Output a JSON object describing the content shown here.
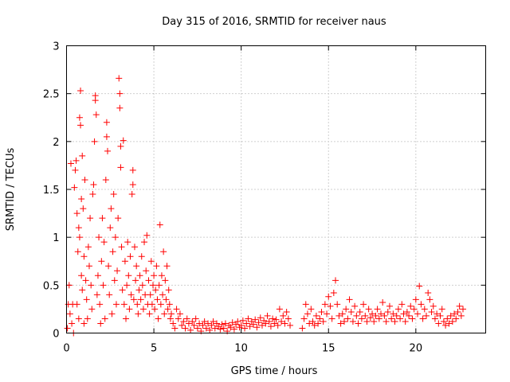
{
  "chart_data": {
    "type": "scatter",
    "title": "Day 315 of 2016, SRMTID for receiver naus",
    "xlabel": "GPS time / hours",
    "ylabel": "SRMTID / TECUs",
    "xlim": [
      0,
      24
    ],
    "ylim": [
      0,
      3
    ],
    "x_ticks": [
      0,
      5,
      10,
      15,
      20
    ],
    "x_tick_labels": [
      "0",
      "5",
      "10",
      "15",
      "20"
    ],
    "y_ticks": [
      0,
      0.5,
      1,
      1.5,
      2,
      2.5,
      3
    ],
    "y_tick_labels": [
      "0",
      "0.5",
      "1",
      "1.5",
      "2",
      "2.5",
      "3"
    ],
    "grid": true,
    "marker": "+",
    "color": "#ff0000",
    "series": [
      {
        "name": "SRMTID",
        "points": [
          [
            0.05,
            0.05
          ],
          [
            0.1,
            0.3
          ],
          [
            0.15,
            0.5
          ],
          [
            0.2,
            0.2
          ],
          [
            0.25,
            1.77
          ],
          [
            0.3,
            0.1
          ],
          [
            0.35,
            0.3
          ],
          [
            0.4,
            0.0
          ],
          [
            0.45,
            1.52
          ],
          [
            0.5,
            1.7
          ],
          [
            0.55,
            1.8
          ],
          [
            0.6,
            1.25
          ],
          [
            0.6,
            0.3
          ],
          [
            0.65,
            0.85
          ],
          [
            0.7,
            1.1
          ],
          [
            0.7,
            0.15
          ],
          [
            0.75,
            2.25
          ],
          [
            0.75,
            1.0
          ],
          [
            0.8,
            2.53
          ],
          [
            0.8,
            2.17
          ],
          [
            0.85,
            1.4
          ],
          [
            0.85,
            0.6
          ],
          [
            0.9,
            1.85
          ],
          [
            0.9,
            0.45
          ],
          [
            0.95,
            1.3
          ],
          [
            1.0,
            0.8
          ],
          [
            1.0,
            0.1
          ],
          [
            1.05,
            1.6
          ],
          [
            1.1,
            0.55
          ],
          [
            1.15,
            0.35
          ],
          [
            1.2,
            0.15
          ],
          [
            1.25,
            0.9
          ],
          [
            1.3,
            0.7
          ],
          [
            1.35,
            1.2
          ],
          [
            1.4,
            0.5
          ],
          [
            1.45,
            0.25
          ],
          [
            1.5,
            1.45
          ],
          [
            1.55,
            1.55
          ],
          [
            1.6,
            2.0
          ],
          [
            1.65,
            2.48
          ],
          [
            1.65,
            2.43
          ],
          [
            1.7,
            2.28
          ],
          [
            1.75,
            0.4
          ],
          [
            1.8,
            0.6
          ],
          [
            1.85,
            1.0
          ],
          [
            1.9,
            0.3
          ],
          [
            1.95,
            0.1
          ],
          [
            2.0,
            0.75
          ],
          [
            2.05,
            1.2
          ],
          [
            2.1,
            0.5
          ],
          [
            2.15,
            0.95
          ],
          [
            2.2,
            0.15
          ],
          [
            2.25,
            1.6
          ],
          [
            2.3,
            2.2
          ],
          [
            2.3,
            2.05
          ],
          [
            2.35,
            1.9
          ],
          [
            2.4,
            0.7
          ],
          [
            2.45,
            0.4
          ],
          [
            2.5,
            1.1
          ],
          [
            2.55,
            1.3
          ],
          [
            2.6,
            0.2
          ],
          [
            2.65,
            0.85
          ],
          [
            2.7,
            1.45
          ],
          [
            2.75,
            0.55
          ],
          [
            2.8,
            1.0
          ],
          [
            2.85,
            0.3
          ],
          [
            2.9,
            0.65
          ],
          [
            2.95,
            1.2
          ],
          [
            3.0,
            2.66
          ],
          [
            3.05,
            2.5
          ],
          [
            3.05,
            2.35
          ],
          [
            3.1,
            1.73
          ],
          [
            3.1,
            1.95
          ],
          [
            3.15,
            0.9
          ],
          [
            3.2,
            0.45
          ],
          [
            3.25,
            2.01
          ],
          [
            3.3,
            0.3
          ],
          [
            3.35,
            0.75
          ],
          [
            3.4,
            0.15
          ],
          [
            3.45,
            0.5
          ],
          [
            3.5,
            0.95
          ],
          [
            3.55,
            0.6
          ],
          [
            3.6,
            0.25
          ],
          [
            3.65,
            0.8
          ],
          [
            3.7,
            0.4
          ],
          [
            3.75,
            1.45
          ],
          [
            3.8,
            1.7
          ],
          [
            3.8,
            1.55
          ],
          [
            3.85,
            0.35
          ],
          [
            3.9,
            0.9
          ],
          [
            3.95,
            0.55
          ],
          [
            4.0,
            0.7
          ],
          [
            4.05,
            0.3
          ],
          [
            4.1,
            0.2
          ],
          [
            4.15,
            0.45
          ],
          [
            4.2,
            0.6
          ],
          [
            4.25,
            0.35
          ],
          [
            4.3,
            0.8
          ],
          [
            4.35,
            0.5
          ],
          [
            4.4,
            0.25
          ],
          [
            4.45,
            0.95
          ],
          [
            4.5,
            0.4
          ],
          [
            4.55,
            0.65
          ],
          [
            4.6,
            1.02
          ],
          [
            4.65,
            0.3
          ],
          [
            4.7,
            0.55
          ],
          [
            4.75,
            0.2
          ],
          [
            4.8,
            0.4
          ],
          [
            4.85,
            0.75
          ],
          [
            4.9,
            0.3
          ],
          [
            4.95,
            0.5
          ],
          [
            5.0,
            0.6
          ],
          [
            5.05,
            0.25
          ],
          [
            5.1,
            0.45
          ],
          [
            5.15,
            0.7
          ],
          [
            5.2,
            0.35
          ],
          [
            5.25,
            0.15
          ],
          [
            5.3,
            0.5
          ],
          [
            5.35,
            1.13
          ],
          [
            5.4,
            0.3
          ],
          [
            5.45,
            0.6
          ],
          [
            5.5,
            0.4
          ],
          [
            5.55,
            0.85
          ],
          [
            5.6,
            0.2
          ],
          [
            5.65,
            0.55
          ],
          [
            5.7,
            0.35
          ],
          [
            5.75,
            0.7
          ],
          [
            5.8,
            0.25
          ],
          [
            5.85,
            0.45
          ],
          [
            5.9,
            0.3
          ],
          [
            5.95,
            0.15
          ],
          [
            6.0,
            0.2
          ],
          [
            6.1,
            0.1
          ],
          [
            6.2,
            0.05
          ],
          [
            6.3,
            0.25
          ],
          [
            6.4,
            0.15
          ],
          [
            6.5,
            0.2
          ],
          [
            6.6,
            0.08
          ],
          [
            6.7,
            0.12
          ],
          [
            6.8,
            0.05
          ],
          [
            6.9,
            0.15
          ],
          [
            7.0,
            0.1
          ],
          [
            7.1,
            0.03
          ],
          [
            7.2,
            0.12
          ],
          [
            7.3,
            0.08
          ],
          [
            7.4,
            0.15
          ],
          [
            7.5,
            0.05
          ],
          [
            7.6,
            0.1
          ],
          [
            7.7,
            0.02
          ],
          [
            7.8,
            0.08
          ],
          [
            7.9,
            0.12
          ],
          [
            8.0,
            0.05
          ],
          [
            8.1,
            0.1
          ],
          [
            8.2,
            0.03
          ],
          [
            8.3,
            0.08
          ],
          [
            8.4,
            0.12
          ],
          [
            8.5,
            0.05
          ],
          [
            8.6,
            0.1
          ],
          [
            8.7,
            0.07
          ],
          [
            8.8,
            0.04
          ],
          [
            8.9,
            0.09
          ],
          [
            9.0,
            0.05
          ],
          [
            9.1,
            0.1
          ],
          [
            9.2,
            0.02
          ],
          [
            9.3,
            0.08
          ],
          [
            9.4,
            0.06
          ],
          [
            9.5,
            0.11
          ],
          [
            9.6,
            0.04
          ],
          [
            9.7,
            0.09
          ],
          [
            9.8,
            0.12
          ],
          [
            9.9,
            0.06
          ],
          [
            10.0,
            0.08
          ],
          [
            10.1,
            0.13
          ],
          [
            10.2,
            0.05
          ],
          [
            10.3,
            0.1
          ],
          [
            10.4,
            0.15
          ],
          [
            10.5,
            0.07
          ],
          [
            10.6,
            0.12
          ],
          [
            10.7,
            0.09
          ],
          [
            10.8,
            0.14
          ],
          [
            10.9,
            0.06
          ],
          [
            11.0,
            0.11
          ],
          [
            11.1,
            0.16
          ],
          [
            11.2,
            0.08
          ],
          [
            11.3,
            0.13
          ],
          [
            11.4,
            0.1
          ],
          [
            11.5,
            0.18
          ],
          [
            11.6,
            0.12
          ],
          [
            11.7,
            0.07
          ],
          [
            11.8,
            0.15
          ],
          [
            11.9,
            0.1
          ],
          [
            12.0,
            0.14
          ],
          [
            12.1,
            0.08
          ],
          [
            12.2,
            0.25
          ],
          [
            12.3,
            0.12
          ],
          [
            12.4,
            0.18
          ],
          [
            12.5,
            0.1
          ],
          [
            12.6,
            0.22
          ],
          [
            12.7,
            0.15
          ],
          [
            12.8,
            0.08
          ],
          [
            13.5,
            0.05
          ],
          [
            13.6,
            0.15
          ],
          [
            13.7,
            0.3
          ],
          [
            13.8,
            0.2
          ],
          [
            13.9,
            0.1
          ],
          [
            14.0,
            0.25
          ],
          [
            14.1,
            0.12
          ],
          [
            14.2,
            0.08
          ],
          [
            14.3,
            0.18
          ],
          [
            14.4,
            0.1
          ],
          [
            14.5,
            0.15
          ],
          [
            14.6,
            0.22
          ],
          [
            14.7,
            0.12
          ],
          [
            14.8,
            0.3
          ],
          [
            14.9,
            0.2
          ],
          [
            15.0,
            0.38
          ],
          [
            15.1,
            0.28
          ],
          [
            15.2,
            0.15
          ],
          [
            15.3,
            0.42
          ],
          [
            15.4,
            0.55
          ],
          [
            15.5,
            0.3
          ],
          [
            15.6,
            0.18
          ],
          [
            15.7,
            0.1
          ],
          [
            15.8,
            0.2
          ],
          [
            15.9,
            0.12
          ],
          [
            16.0,
            0.25
          ],
          [
            16.1,
            0.15
          ],
          [
            16.2,
            0.35
          ],
          [
            16.3,
            0.22
          ],
          [
            16.4,
            0.12
          ],
          [
            16.5,
            0.28
          ],
          [
            16.6,
            0.18
          ],
          [
            16.7,
            0.1
          ],
          [
            16.8,
            0.22
          ],
          [
            16.9,
            0.15
          ],
          [
            17.0,
            0.3
          ],
          [
            17.1,
            0.18
          ],
          [
            17.2,
            0.12
          ],
          [
            17.3,
            0.25
          ],
          [
            17.4,
            0.16
          ],
          [
            17.5,
            0.2
          ],
          [
            17.6,
            0.12
          ],
          [
            17.7,
            0.18
          ],
          [
            17.8,
            0.25
          ],
          [
            17.9,
            0.15
          ],
          [
            18.0,
            0.2
          ],
          [
            18.1,
            0.32
          ],
          [
            18.2,
            0.18
          ],
          [
            18.3,
            0.12
          ],
          [
            18.4,
            0.22
          ],
          [
            18.5,
            0.28
          ],
          [
            18.6,
            0.15
          ],
          [
            18.7,
            0.2
          ],
          [
            18.8,
            0.12
          ],
          [
            18.9,
            0.18
          ],
          [
            19.0,
            0.25
          ],
          [
            19.1,
            0.15
          ],
          [
            19.2,
            0.3
          ],
          [
            19.3,
            0.2
          ],
          [
            19.4,
            0.12
          ],
          [
            19.5,
            0.22
          ],
          [
            19.6,
            0.18
          ],
          [
            19.7,
            0.28
          ],
          [
            19.8,
            0.15
          ],
          [
            19.9,
            0.25
          ],
          [
            20.0,
            0.35
          ],
          [
            20.1,
            0.2
          ],
          [
            20.2,
            0.49
          ],
          [
            20.3,
            0.3
          ],
          [
            20.4,
            0.15
          ],
          [
            20.5,
            0.25
          ],
          [
            20.6,
            0.18
          ],
          [
            20.7,
            0.42
          ],
          [
            20.8,
            0.35
          ],
          [
            20.9,
            0.22
          ],
          [
            21.0,
            0.28
          ],
          [
            21.1,
            0.15
          ],
          [
            21.2,
            0.2
          ],
          [
            21.3,
            0.1
          ],
          [
            21.4,
            0.18
          ],
          [
            21.5,
            0.25
          ],
          [
            21.6,
            0.12
          ],
          [
            21.7,
            0.08
          ],
          [
            21.8,
            0.15
          ],
          [
            21.9,
            0.1
          ],
          [
            22.0,
            0.18
          ],
          [
            22.1,
            0.12
          ],
          [
            22.2,
            0.2
          ],
          [
            22.3,
            0.15
          ],
          [
            22.4,
            0.22
          ],
          [
            22.5,
            0.28
          ],
          [
            22.6,
            0.18
          ],
          [
            22.7,
            0.25
          ]
        ]
      }
    ]
  }
}
